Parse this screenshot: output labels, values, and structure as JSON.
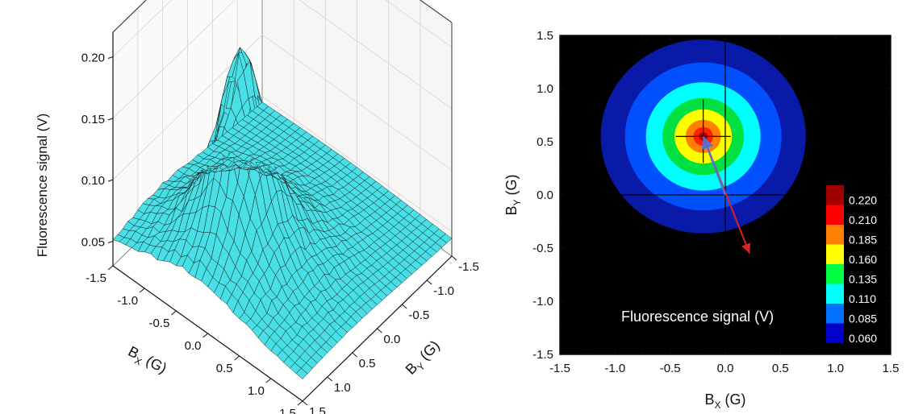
{
  "chart_data": [
    {
      "type": "surface3d",
      "zlabel": "Fluorescence signal (V)",
      "xlabel_main": "B",
      "xlabel_sub": "X",
      "xlabel_unit": " (G)",
      "ylabel_main": "B",
      "ylabel_sub": "Y",
      "ylabel_unit": " (G)",
      "x_ticks": [
        "-1.5",
        "-1.0",
        "-0.5",
        "0.0",
        "0.5",
        "1.0",
        "1.5"
      ],
      "y_ticks": [
        "1.5",
        "1.0",
        "0.5",
        "0.0",
        "-0.5",
        "-1.0",
        "-1.5"
      ],
      "z_ticks": [
        "0.05",
        "0.10",
        "0.15",
        "0.20"
      ],
      "xlim": [
        -1.5,
        1.5
      ],
      "ylim": [
        -1.5,
        1.5
      ],
      "zlim": [
        0.03,
        0.22
      ],
      "peak": {
        "x": -0.2,
        "y": 0.55,
        "z": 0.22
      },
      "baseline": 0.04,
      "surface_color": "#48e0e6",
      "mesh_color": "#111111"
    },
    {
      "type": "heatmap",
      "xlabel_main": "B",
      "xlabel_sub": "X",
      "xlabel_unit": " (G)",
      "ylabel_main": "B",
      "ylabel_sub": "Y",
      "ylabel_unit": " (G)",
      "x_ticks": [
        "-1.5",
        "-1.0",
        "-0.5",
        "0.0",
        "0.5",
        "1.0",
        "1.5"
      ],
      "y_ticks": [
        "1.5",
        "1.0",
        "0.5",
        "0.0",
        "-0.5",
        "-1.0",
        "-1.5"
      ],
      "xlim": [
        -1.5,
        1.5
      ],
      "ylim": [
        -1.5,
        1.5
      ],
      "background": "#000000",
      "crosshair": {
        "x": 0.0,
        "y": 0.0
      },
      "peak": {
        "x": -0.2,
        "y": 0.55
      },
      "colorbar": {
        "levels": [
          "0.220",
          "0.210",
          "0.185",
          "0.160",
          "0.135",
          "0.110",
          "0.085",
          "0.060"
        ],
        "colors": [
          "#a00000",
          "#ff0000",
          "#ff8000",
          "#ffff00",
          "#00ff40",
          "#00ffff",
          "#0070ff",
          "#0000c8"
        ]
      },
      "contour_radii": [
        0.93,
        0.71,
        0.52,
        0.37,
        0.26,
        0.16,
        0.09,
        0.04
      ],
      "contour_colors": [
        "#0a1aa8",
        "#0050ff",
        "#00ffff",
        "#00e040",
        "#ffff00",
        "#ff8000",
        "#ff2000",
        "#b00000"
      ],
      "annotation": "Fluorescence signal (V)",
      "blue_arrow": {
        "from": [
          0.0,
          0.0
        ],
        "to": [
          -0.2,
          0.55
        ],
        "color": "#5a6cd6"
      },
      "red_arrow": {
        "from": [
          -0.2,
          0.55
        ],
        "to": [
          0.22,
          -0.55
        ],
        "color": "#e02020"
      },
      "center_cross": {
        "x": [
          -0.45,
          0.05
        ],
        "y": [
          0.3,
          0.9
        ]
      }
    }
  ]
}
